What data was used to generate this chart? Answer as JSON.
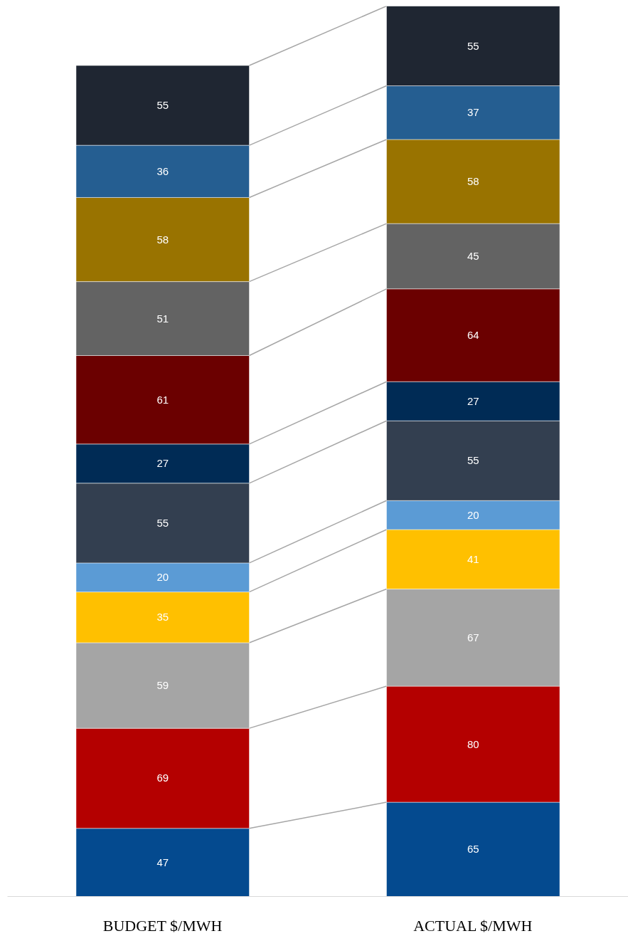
{
  "chart_data": {
    "type": "bar",
    "stacked": true,
    "data_labels": true,
    "categories": [
      "BUDGET $/MWH",
      "ACTUAL $/MWH"
    ],
    "series": [
      {
        "color": "#044a8f",
        "values": [
          47,
          65
        ]
      },
      {
        "color": "#b40000",
        "values": [
          69,
          80
        ]
      },
      {
        "color": "#a5a5a5",
        "values": [
          59,
          67
        ]
      },
      {
        "color": "#ffc000",
        "values": [
          35,
          41
        ]
      },
      {
        "color": "#5b9bd5",
        "values": [
          20,
          20
        ]
      },
      {
        "color": "#333f50",
        "values": [
          55,
          55
        ]
      },
      {
        "color": "#002b55",
        "values": [
          27,
          27
        ]
      },
      {
        "color": "#6b0000",
        "values": [
          61,
          64
        ]
      },
      {
        "color": "#636363",
        "values": [
          51,
          45
        ]
      },
      {
        "color": "#997300",
        "values": [
          58,
          58
        ]
      },
      {
        "color": "#255e91",
        "values": [
          36,
          37
        ]
      },
      {
        "color": "#1f2632",
        "values": [
          55,
          55
        ]
      }
    ]
  }
}
